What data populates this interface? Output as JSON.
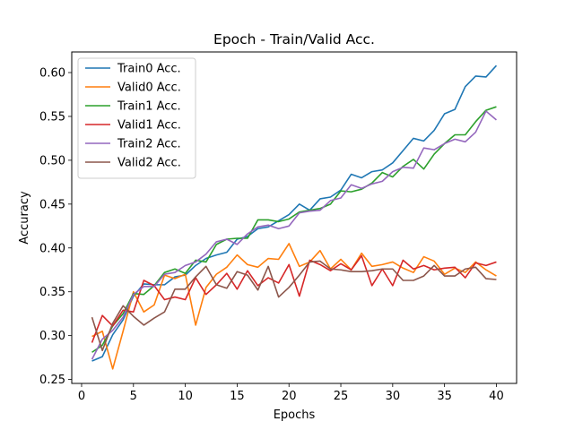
{
  "chart_data": {
    "type": "line",
    "title": "Epoch - Train/Valid Acc.",
    "xlabel": "Epochs",
    "ylabel": "Accuracy",
    "xlim": [
      -0.95,
      41.95
    ],
    "ylim": [
      0.2455,
      0.6235
    ],
    "x_ticks": [
      0,
      5,
      10,
      15,
      20,
      25,
      30,
      35,
      40
    ],
    "y_ticks": [
      0.25,
      0.3,
      0.35,
      0.4,
      0.45,
      0.5,
      0.55,
      0.6
    ],
    "y_tick_labels": [
      "0.25",
      "0.30",
      "0.35",
      "0.40",
      "0.45",
      "0.50",
      "0.55",
      "0.60"
    ],
    "grid": false,
    "legend_position": "top-left",
    "x": [
      1,
      2,
      3,
      4,
      5,
      6,
      7,
      8,
      9,
      10,
      11,
      12,
      13,
      14,
      15,
      16,
      17,
      18,
      19,
      20,
      21,
      22,
      23,
      24,
      25,
      26,
      27,
      28,
      29,
      30,
      31,
      32,
      33,
      34,
      35,
      36,
      37,
      38,
      39,
      40
    ],
    "series": [
      {
        "name": "Train0 Acc.",
        "color": "#1f77b4",
        "values": [
          0.271,
          0.276,
          0.301,
          0.318,
          0.345,
          0.359,
          0.358,
          0.358,
          0.367,
          0.369,
          0.38,
          0.388,
          0.392,
          0.395,
          0.41,
          0.413,
          0.422,
          0.424,
          0.431,
          0.438,
          0.45,
          0.443,
          0.456,
          0.458,
          0.466,
          0.484,
          0.48,
          0.487,
          0.489,
          0.497,
          0.511,
          0.525,
          0.522,
          0.534,
          0.553,
          0.558,
          0.584,
          0.596,
          0.595,
          0.608
        ]
      },
      {
        "name": "Valid0 Acc.",
        "color": "#ff7f0e",
        "values": [
          0.299,
          0.305,
          0.262,
          0.305,
          0.35,
          0.327,
          0.335,
          0.369,
          0.365,
          0.37,
          0.312,
          0.355,
          0.37,
          0.378,
          0.392,
          0.381,
          0.378,
          0.388,
          0.387,
          0.405,
          0.379,
          0.384,
          0.397,
          0.376,
          0.387,
          0.375,
          0.394,
          0.379,
          0.381,
          0.384,
          0.377,
          0.372,
          0.39,
          0.385,
          0.37,
          0.377,
          0.372,
          0.384,
          0.375,
          0.368
        ]
      },
      {
        "name": "Train1 Acc.",
        "color": "#2ca02c",
        "values": [
          0.281,
          0.289,
          0.311,
          0.325,
          0.348,
          0.347,
          0.357,
          0.372,
          0.376,
          0.371,
          0.386,
          0.384,
          0.404,
          0.41,
          0.411,
          0.411,
          0.432,
          0.432,
          0.43,
          0.433,
          0.441,
          0.443,
          0.445,
          0.45,
          0.465,
          0.464,
          0.467,
          0.474,
          0.486,
          0.481,
          0.493,
          0.501,
          0.49,
          0.507,
          0.519,
          0.529,
          0.529,
          0.544,
          0.557,
          0.561
        ]
      },
      {
        "name": "Valid1 Acc.",
        "color": "#d62728",
        "values": [
          0.292,
          0.323,
          0.311,
          0.329,
          0.327,
          0.363,
          0.357,
          0.341,
          0.344,
          0.341,
          0.366,
          0.347,
          0.358,
          0.371,
          0.353,
          0.374,
          0.357,
          0.366,
          0.36,
          0.381,
          0.345,
          0.386,
          0.381,
          0.374,
          0.382,
          0.375,
          0.391,
          0.357,
          0.376,
          0.357,
          0.386,
          0.376,
          0.38,
          0.375,
          0.377,
          0.378,
          0.366,
          0.383,
          0.38,
          0.384
        ]
      },
      {
        "name": "Train2 Acc.",
        "color": "#9467bd",
        "values": [
          0.273,
          0.296,
          0.306,
          0.321,
          0.347,
          0.356,
          0.356,
          0.37,
          0.372,
          0.38,
          0.384,
          0.393,
          0.407,
          0.41,
          0.404,
          0.416,
          0.424,
          0.426,
          0.422,
          0.425,
          0.44,
          0.442,
          0.443,
          0.454,
          0.457,
          0.472,
          0.468,
          0.473,
          0.476,
          0.487,
          0.492,
          0.491,
          0.514,
          0.512,
          0.519,
          0.524,
          0.521,
          0.532,
          0.556,
          0.546
        ]
      },
      {
        "name": "Valid2 Acc.",
        "color": "#8c564b",
        "values": [
          0.321,
          0.283,
          0.314,
          0.334,
          0.322,
          0.312,
          0.32,
          0.327,
          0.353,
          0.353,
          0.367,
          0.379,
          0.358,
          0.354,
          0.373,
          0.369,
          0.352,
          0.379,
          0.344,
          0.355,
          0.369,
          0.384,
          0.385,
          0.376,
          0.375,
          0.373,
          0.373,
          0.374,
          0.376,
          0.376,
          0.363,
          0.363,
          0.368,
          0.38,
          0.368,
          0.368,
          0.376,
          0.378,
          0.365,
          0.364
        ]
      }
    ]
  }
}
